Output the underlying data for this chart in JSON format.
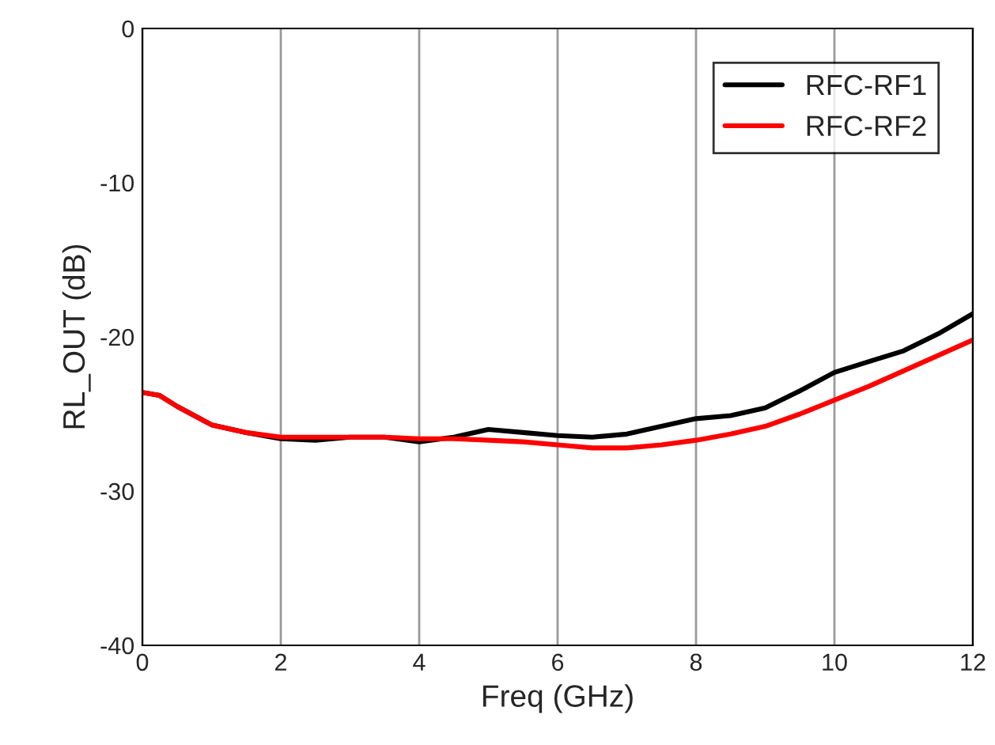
{
  "chart_data": {
    "type": "line",
    "xlabel": "Freq (GHz)",
    "ylabel": "RL_OUT (dB)",
    "x": [
      0,
      0.25,
      0.5,
      1,
      1.5,
      2,
      2.5,
      3,
      3.5,
      4,
      4.5,
      5,
      5.5,
      6,
      6.5,
      7,
      7.5,
      8,
      8.5,
      9,
      9.5,
      10,
      10.5,
      11,
      11.5,
      12
    ],
    "series": [
      {
        "name": "RFC-RF1",
        "color": "#000000",
        "values": [
          -23.6,
          -23.8,
          -24.5,
          -25.7,
          -26.2,
          -26.6,
          -26.7,
          -26.5,
          -26.5,
          -26.8,
          -26.5,
          -26.0,
          -26.2,
          -26.4,
          -26.5,
          -26.3,
          -25.8,
          -25.3,
          -25.1,
          -24.6,
          -23.5,
          -22.3,
          -21.6,
          -20.9,
          -19.8,
          -18.5
        ]
      },
      {
        "name": "RFC-RF2",
        "color": "#ff0000",
        "values": [
          -23.6,
          -23.8,
          -24.5,
          -25.7,
          -26.2,
          -26.5,
          -26.5,
          -26.5,
          -26.5,
          -26.6,
          -26.6,
          -26.7,
          -26.8,
          -27.0,
          -27.2,
          -27.2,
          -27.0,
          -26.7,
          -26.3,
          -25.8,
          -25.0,
          -24.1,
          -23.2,
          -22.2,
          -21.2,
          -20.2
        ]
      }
    ],
    "xlim": [
      0,
      12
    ],
    "xticks": [
      0,
      2,
      4,
      6,
      8,
      10,
      12
    ],
    "ylim": [
      -40,
      0
    ],
    "yticks": [
      -40,
      -30,
      -20,
      -10,
      0
    ],
    "grid": "x",
    "legend": "top right",
    "line_style": "solid",
    "marker": "none"
  }
}
